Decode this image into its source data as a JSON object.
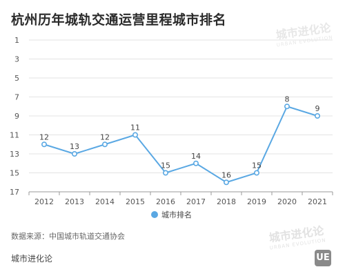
{
  "title": "杭州历年城轨交通运营里程城市排名",
  "watermark": {
    "main": "城市进化论",
    "sub": "URBAN EVOLUTION"
  },
  "source": "数据来源：中国城市轨道交通协会",
  "footer_name": "城市进化论",
  "logo_text": "UE",
  "colors": {
    "line": "#5aa8e3",
    "marker_fill": "#ffffff",
    "grid": "#e3e3e3",
    "axis": "#999999"
  },
  "chart_data": {
    "type": "line",
    "title": "杭州历年城轨交通运营里程城市排名",
    "categories": [
      "2012",
      "2013",
      "2014",
      "2015",
      "2016",
      "2017",
      "2018",
      "2019",
      "2020",
      "2021"
    ],
    "series": [
      {
        "name": "城市排名",
        "values": [
          12,
          13,
          12,
          11,
          15,
          14,
          16,
          15,
          8,
          9
        ]
      }
    ],
    "y_ticks": [
      1,
      3,
      5,
      7,
      9,
      11,
      13,
      15,
      17
    ],
    "ylim": [
      1,
      17
    ],
    "y_reversed": true,
    "grid": "horizontal",
    "legend_position": "bottom-center",
    "data_labels": true
  }
}
